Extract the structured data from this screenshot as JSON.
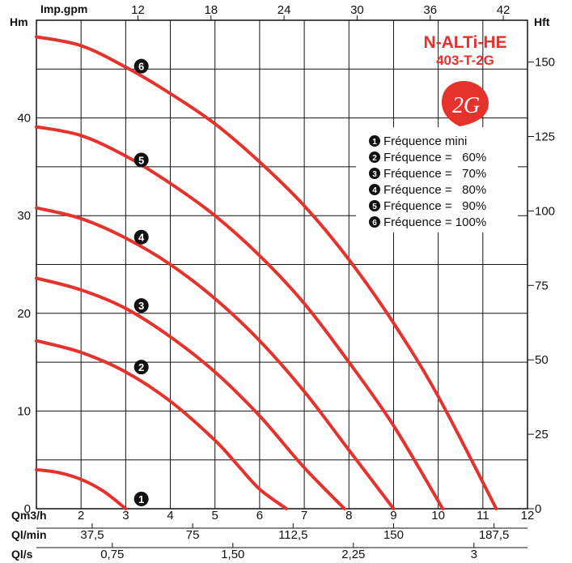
{
  "colors": {
    "curve": "#e5322d",
    "marker": "#111111",
    "brand": "#e5322d",
    "grid": "#111111"
  },
  "model": {
    "line1": "N-ALTi-HE",
    "line2": "403-T-2G",
    "logo_text": "2G"
  },
  "axis_titles": {
    "left": "Hm",
    "right": "Hft",
    "top": "Imp.gpm",
    "bottom_q": "Qm3/h",
    "bottom_qlmin": "Ql/min",
    "bottom_qls": "Ql/s"
  },
  "ticks": {
    "hm": [
      "0",
      "10",
      "20",
      "30",
      "40"
    ],
    "hft": [
      "0",
      "25",
      "50",
      "75",
      "100",
      "125",
      "150"
    ],
    "gpm": [
      "12",
      "18",
      "24",
      "30",
      "36",
      "42"
    ],
    "qm3h": [
      "2",
      "3",
      "4",
      "5",
      "6",
      "7",
      "8",
      "9",
      "10",
      "11",
      "12"
    ],
    "qlmin": [
      "37,5",
      "75",
      "112,5",
      "150",
      "187,5"
    ],
    "qls": [
      "0,75",
      "1,50",
      "2,25",
      "3"
    ]
  },
  "legend": [
    {
      "num": "1",
      "label": "Fréquence mini"
    },
    {
      "num": "2",
      "label": "Fréquence =   60%"
    },
    {
      "num": "3",
      "label": "Fréquence =   70%"
    },
    {
      "num": "4",
      "label": "Fréquence =   80%"
    },
    {
      "num": "5",
      "label": "Fréquence =   90%"
    },
    {
      "num": "6",
      "label": "Fréquence = 100%"
    }
  ],
  "chart_data": {
    "type": "line",
    "x_axis": {
      "label": "Qm3/h",
      "range": [
        1,
        12
      ]
    },
    "y_axis": {
      "label": "Hm",
      "range": [
        0,
        50
      ]
    },
    "secondary_axes": {
      "right": {
        "label": "Hft",
        "range_ft": [
          0,
          164
        ]
      },
      "top": {
        "label": "Imp.gpm"
      },
      "bottom_extra": [
        "Ql/min",
        "Ql/s"
      ]
    },
    "grid": true,
    "legend_position": "top-right",
    "series": [
      {
        "name": "1",
        "points": [
          [
            1,
            4.0
          ],
          [
            1.5,
            3.7
          ],
          [
            2,
            3.0
          ],
          [
            2.5,
            1.8
          ],
          [
            3.0,
            0
          ]
        ]
      },
      {
        "name": "2",
        "points": [
          [
            1,
            17.2
          ],
          [
            2,
            16.0
          ],
          [
            3,
            14.0
          ],
          [
            4,
            11.0
          ],
          [
            5,
            7.0
          ],
          [
            5.5,
            4.5
          ],
          [
            6.0,
            2.0
          ],
          [
            6.6,
            0
          ]
        ]
      },
      {
        "name": "3",
        "points": [
          [
            1,
            23.6
          ],
          [
            2,
            22.4
          ],
          [
            3,
            20.5
          ],
          [
            4,
            17.6
          ],
          [
            5,
            14.0
          ],
          [
            6,
            9.5
          ],
          [
            7,
            4.2
          ],
          [
            7.9,
            0
          ]
        ]
      },
      {
        "name": "4",
        "points": [
          [
            1,
            30.8
          ],
          [
            2,
            29.7
          ],
          [
            3,
            27.7
          ],
          [
            4,
            25.0
          ],
          [
            5,
            21.5
          ],
          [
            6,
            17.2
          ],
          [
            7,
            12.0
          ],
          [
            8,
            6.0
          ],
          [
            9.0,
            0
          ]
        ]
      },
      {
        "name": "5",
        "points": [
          [
            1,
            39.1
          ],
          [
            2,
            38.2
          ],
          [
            3,
            36.1
          ],
          [
            4,
            33.3
          ],
          [
            5,
            30.0
          ],
          [
            6,
            25.9
          ],
          [
            7,
            21.0
          ],
          [
            8,
            15.0
          ],
          [
            9,
            8.5
          ],
          [
            10.1,
            0
          ]
        ]
      },
      {
        "name": "6",
        "points": [
          [
            1,
            48.3
          ],
          [
            2,
            47.4
          ],
          [
            3,
            45.2
          ],
          [
            4,
            42.5
          ],
          [
            5,
            39.4
          ],
          [
            6,
            35.5
          ],
          [
            7,
            31.0
          ],
          [
            8,
            25.5
          ],
          [
            9,
            19.0
          ],
          [
            10,
            11.5
          ],
          [
            11.3,
            0
          ]
        ]
      }
    ],
    "curve_labels": [
      {
        "num": "1",
        "x": 3.35,
        "y": 1.0
      },
      {
        "num": "2",
        "x": 3.35,
        "y": 14.5
      },
      {
        "num": "3",
        "x": 3.35,
        "y": 20.8
      },
      {
        "num": "4",
        "x": 3.35,
        "y": 27.8
      },
      {
        "num": "5",
        "x": 3.35,
        "y": 35.7
      },
      {
        "num": "6",
        "x": 3.35,
        "y": 45.3
      }
    ]
  }
}
